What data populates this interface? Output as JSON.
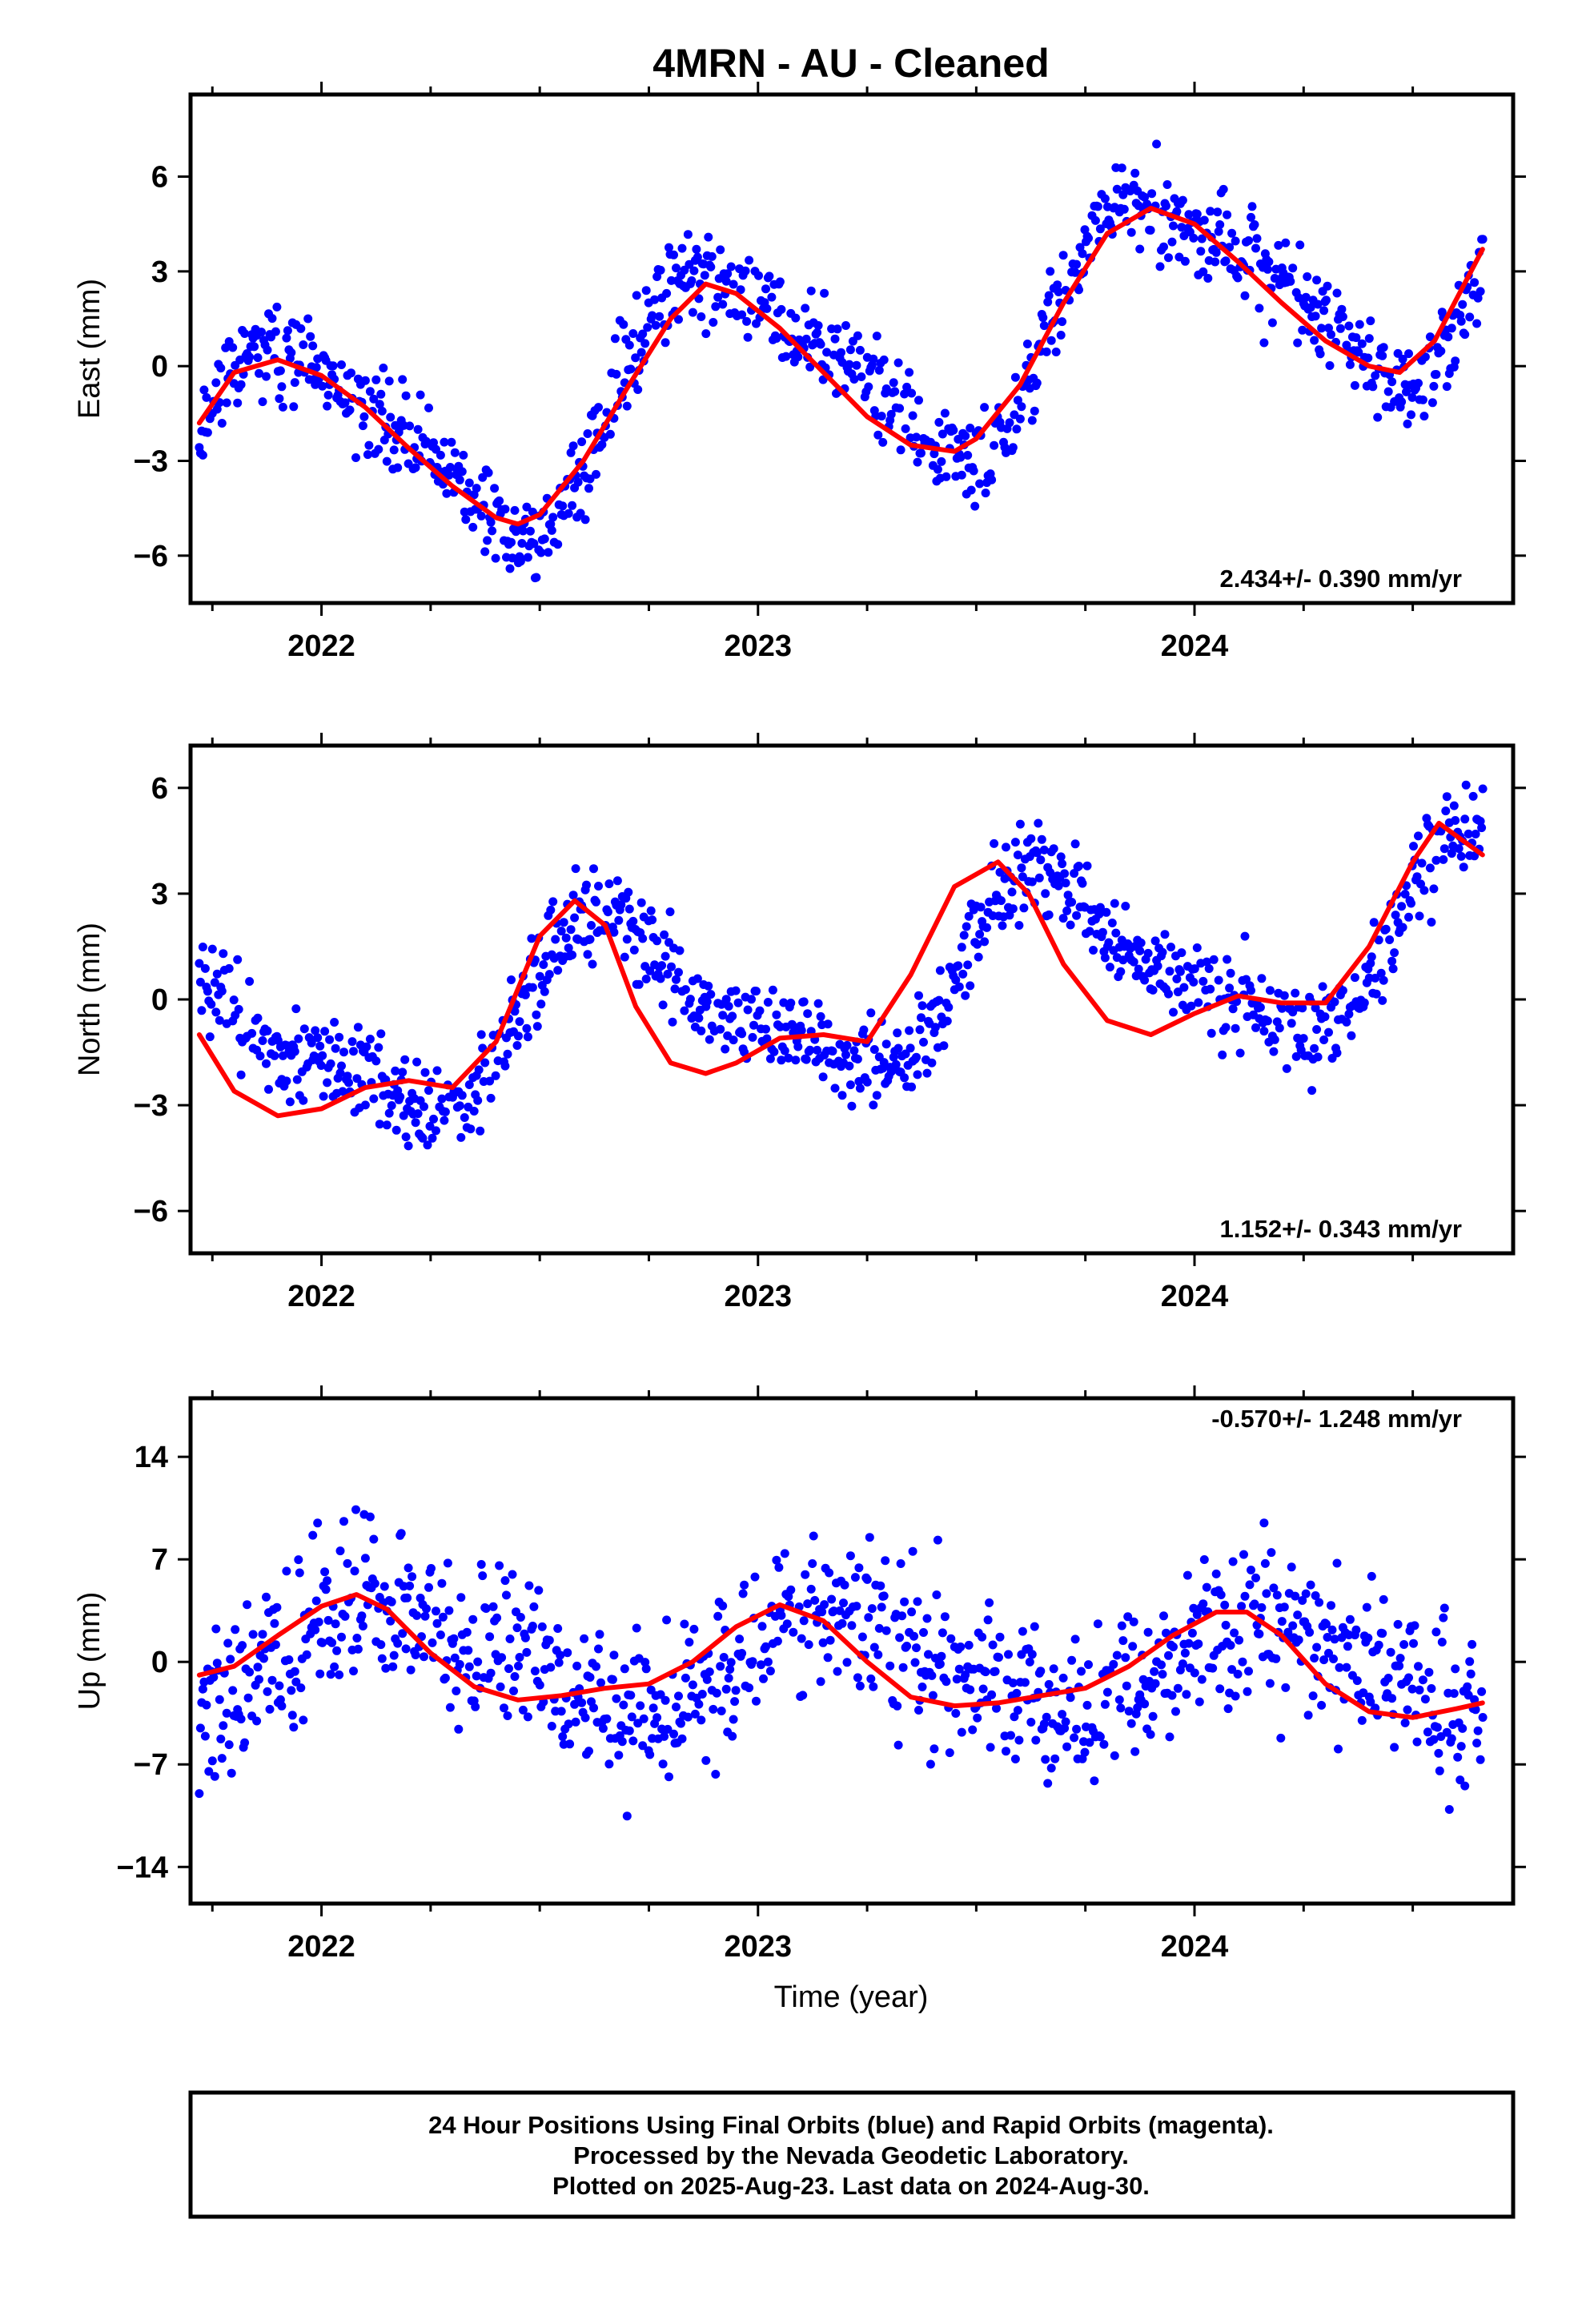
{
  "title": "4MRN  - AU - Cleaned",
  "xlabel": "Time (year)",
  "colors": {
    "points": "#0000ff",
    "fit": "#ff0000",
    "frame": "#000000"
  },
  "xlim": [
    2021.7,
    2024.73
  ],
  "x_tick_labels": [
    "2022",
    "2023",
    "2024"
  ],
  "footer": [
    "24 Hour Positions Using Final Orbits (blue) and Rapid Orbits (magenta).",
    "Processed by the Nevada Geodetic Laboratory.",
    "Plotted on 2025-Aug-23. Last data on 2024-Aug-30."
  ],
  "chart_data": [
    {
      "type": "scatter",
      "component": "east",
      "ylabel": "East (mm)",
      "ylim": [
        -7.5,
        8.6
      ],
      "yticks": [
        -6,
        -3,
        0,
        3,
        6
      ],
      "ytick_labels": [
        "−6",
        "−3",
        "0",
        "3",
        "6"
      ],
      "rate_label": "2.434+/- 0.390 mm/yr",
      "rate_position": "bottom-right",
      "series": [
        {
          "kind": "points",
          "x_start": 2021.72,
          "x_end": 2024.66,
          "model": {
            "trend": 2.434,
            "ref_year": 2023.2,
            "offset": 0.2,
            "amplitudes": [
              3.35,
              0.9
            ],
            "phases": [
              2.0,
              -1.9
            ],
            "noise_sd": 0.95
          },
          "seed": 11
        },
        {
          "kind": "fit",
          "x": [
            2021.72,
            2021.8,
            2021.9,
            2022.0,
            2022.1,
            2022.2,
            2022.3,
            2022.4,
            2022.45,
            2022.5,
            2022.6,
            2022.7,
            2022.8,
            2022.88,
            2022.95,
            2023.05,
            2023.15,
            2023.25,
            2023.35,
            2023.45,
            2023.5,
            2023.6,
            2023.7,
            2023.8,
            2023.9,
            2024.0,
            2024.1,
            2024.2,
            2024.3,
            2024.4,
            2024.47,
            2024.55,
            2024.66
          ],
          "y": [
            -1.8,
            -0.2,
            0.2,
            -0.3,
            -1.3,
            -2.6,
            -3.8,
            -4.8,
            -5.0,
            -4.7,
            -3.0,
            -0.7,
            1.5,
            2.6,
            2.3,
            1.2,
            -0.2,
            -1.6,
            -2.5,
            -2.7,
            -2.3,
            -0.6,
            2.0,
            4.2,
            5.0,
            4.5,
            3.3,
            2.0,
            0.8,
            0.0,
            -0.2,
            0.8,
            3.7
          ]
        }
      ]
    },
    {
      "type": "scatter",
      "component": "north",
      "ylabel": "North (mm)",
      "ylim": [
        -7.2,
        7.2
      ],
      "yticks": [
        -6,
        -3,
        0,
        3,
        6
      ],
      "ytick_labels": [
        "−6",
        "−3",
        "0",
        "3",
        "6"
      ],
      "rate_label": "1.152+/- 0.343 mm/yr",
      "rate_position": "bottom-right",
      "series": [
        {
          "kind": "points",
          "x_start": 2021.72,
          "x_end": 2024.66,
          "model": {
            "trend": 1.152,
            "ref_year": 2023.2,
            "offset": 0.3,
            "amplitudes": [
              2.3,
              0.8
            ],
            "phases": [
              -2.7,
              0.4
            ],
            "noise_sd": 0.85
          },
          "seed": 23
        },
        {
          "kind": "fit",
          "x": [
            2021.72,
            2021.8,
            2021.9,
            2022.0,
            2022.1,
            2022.2,
            2022.3,
            2022.4,
            2022.5,
            2022.58,
            2022.65,
            2022.72,
            2022.8,
            2022.88,
            2022.95,
            2023.05,
            2023.15,
            2023.25,
            2023.35,
            2023.45,
            2023.55,
            2023.62,
            2023.7,
            2023.8,
            2023.9,
            2024.0,
            2024.1,
            2024.2,
            2024.3,
            2024.4,
            2024.5,
            2024.56,
            2024.66
          ],
          "y": [
            -1.0,
            -2.6,
            -3.3,
            -3.1,
            -2.5,
            -2.3,
            -2.5,
            -1.2,
            1.8,
            2.8,
            2.1,
            -0.2,
            -1.8,
            -2.1,
            -1.8,
            -1.1,
            -1.0,
            -1.2,
            0.7,
            3.2,
            3.9,
            3.0,
            1.0,
            -0.6,
            -1.0,
            -0.4,
            0.1,
            -0.1,
            -0.1,
            1.5,
            3.9,
            5.0,
            4.1
          ]
        }
      ]
    },
    {
      "type": "scatter",
      "component": "up",
      "ylabel": "Up (mm)",
      "ylim": [
        -16.5,
        18
      ],
      "yticks": [
        -14,
        -7,
        0,
        7,
        14
      ],
      "ytick_labels": [
        "−14",
        "−7",
        "0",
        "7",
        "14"
      ],
      "rate_label": "-0.570+/- 1.248 mm/yr",
      "rate_position": "top-right",
      "series": [
        {
          "kind": "points",
          "x_start": 2021.72,
          "x_end": 2024.66,
          "model": {
            "trend": -0.57,
            "ref_year": 2023.2,
            "offset": 0.0,
            "amplitudes": [
              3.3,
              0.6
            ],
            "phases": [
              0.4,
              1.0
            ],
            "noise_sd": 3.8
          },
          "seed": 37
        },
        {
          "kind": "fit",
          "x": [
            2021.72,
            2021.8,
            2021.9,
            2022.0,
            2022.08,
            2022.15,
            2022.25,
            2022.35,
            2022.45,
            2022.55,
            2022.65,
            2022.75,
            2022.85,
            2022.95,
            2023.05,
            2023.15,
            2023.25,
            2023.35,
            2023.45,
            2023.55,
            2023.65,
            2023.75,
            2023.85,
            2023.95,
            2024.05,
            2024.12,
            2024.2,
            2024.3,
            2024.4,
            2024.5,
            2024.6,
            2024.66
          ],
          "y": [
            -0.9,
            -0.3,
            1.8,
            3.8,
            4.6,
            3.6,
            0.6,
            -1.7,
            -2.6,
            -2.3,
            -1.8,
            -1.5,
            0.0,
            2.4,
            3.9,
            2.8,
            0.0,
            -2.4,
            -3.0,
            -2.8,
            -2.3,
            -1.8,
            -0.3,
            1.8,
            3.4,
            3.4,
            1.8,
            -1.5,
            -3.4,
            -3.8,
            -3.2,
            -2.8
          ]
        }
      ]
    }
  ]
}
